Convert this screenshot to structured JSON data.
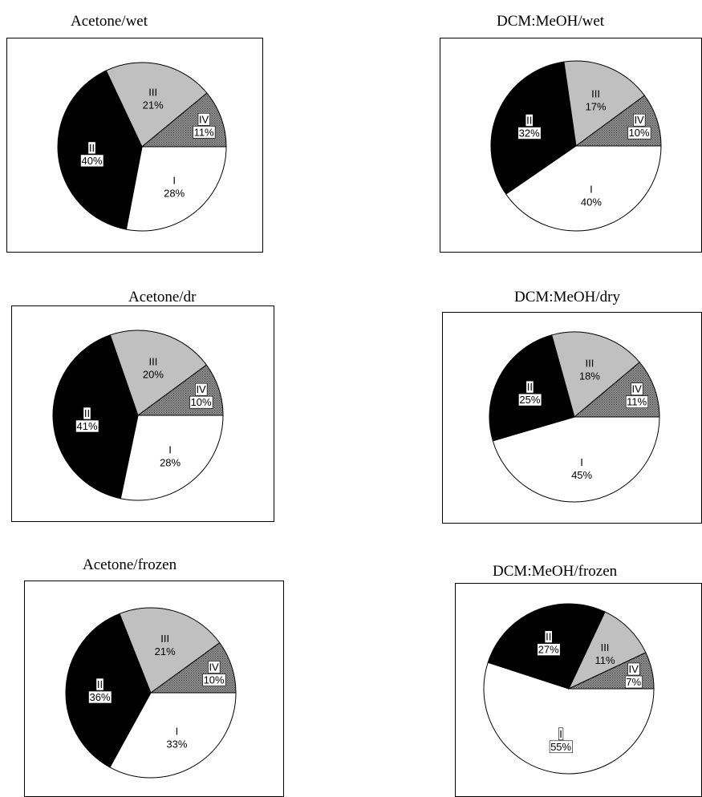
{
  "colors": {
    "I": "#ffffff",
    "II": "#000000",
    "III": "#c0c0c0",
    "IV": "#8c8c8c",
    "label_on_light": "#000000",
    "label_box_bg": "#ffffff"
  },
  "chart_data": [
    {
      "type": "pie",
      "title": "Acetone/wet",
      "slices": [
        {
          "label": "I",
          "value": 28,
          "pct_text": "28%"
        },
        {
          "label": "II",
          "value": 40,
          "pct_text": "40%"
        },
        {
          "label": "III",
          "value": 21,
          "pct_text": "21%"
        },
        {
          "label": "IV",
          "value": 11,
          "pct_text": "11%"
        }
      ]
    },
    {
      "type": "pie",
      "title": "DCM:MeOH/wet",
      "slices": [
        {
          "label": "I",
          "value": 40,
          "pct_text": "40%"
        },
        {
          "label": "II",
          "value": 32,
          "pct_text": "32%"
        },
        {
          "label": "III",
          "value": 17,
          "pct_text": "17%"
        },
        {
          "label": "IV",
          "value": 10,
          "pct_text": "10%"
        }
      ]
    },
    {
      "type": "pie",
      "title": "Acetone/dr",
      "slices": [
        {
          "label": "I",
          "value": 28,
          "pct_text": "28%"
        },
        {
          "label": "II",
          "value": 41,
          "pct_text": "41%"
        },
        {
          "label": "III",
          "value": 20,
          "pct_text": "20%"
        },
        {
          "label": "IV",
          "value": 10,
          "pct_text": "10%"
        }
      ]
    },
    {
      "type": "pie",
      "title": "DCM:MeOH/dry",
      "slices": [
        {
          "label": "I",
          "value": 45,
          "pct_text": "45%"
        },
        {
          "label": "II",
          "value": 25,
          "pct_text": "25%"
        },
        {
          "label": "III",
          "value": 18,
          "pct_text": "18%"
        },
        {
          "label": "IV",
          "value": 11,
          "pct_text": "11%"
        }
      ]
    },
    {
      "type": "pie",
      "title": "Acetone/frozen",
      "slices": [
        {
          "label": "I",
          "value": 33,
          "pct_text": "33%"
        },
        {
          "label": "II",
          "value": 36,
          "pct_text": "36%"
        },
        {
          "label": "III",
          "value": 21,
          "pct_text": "21%"
        },
        {
          "label": "IV",
          "value": 10,
          "pct_text": "10%"
        }
      ]
    },
    {
      "type": "pie",
      "title": "DCM:MeOH/frozen",
      "slices": [
        {
          "label": "I",
          "value": 55,
          "pct_text": "55%"
        },
        {
          "label": "II",
          "value": 27,
          "pct_text": "27%"
        },
        {
          "label": "III",
          "value": 11,
          "pct_text": "11%"
        },
        {
          "label": "IV",
          "value": 7,
          "pct_text": "7%"
        }
      ]
    }
  ]
}
